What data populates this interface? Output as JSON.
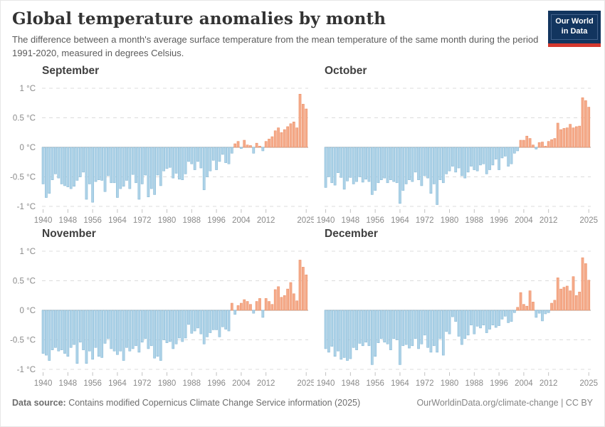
{
  "header": {
    "title": "Global temperature anomalies by month",
    "subtitle": "The difference between a month's average surface temperature from the mean temperature of the same month during the period 1991-2020, measured in degrees Celsius.",
    "logo": {
      "line1": "Our World",
      "line2": "in Data"
    }
  },
  "footer": {
    "source_label": "Data source:",
    "source_text": " Contains modified Copernicus Climate Change Service information (2025)",
    "link_text": "OurWorldinData.org/climate-change | CC BY"
  },
  "colors": {
    "positive_fill": "#f5ab8b",
    "positive_stroke": "#ec9168",
    "negative_fill": "#aed3e8",
    "negative_stroke": "#88b9d6",
    "grid_line": "#dcdcdc",
    "zero_line": "#9a9a9a",
    "tick": "#c2c2c2",
    "logo_navy": "#12355f",
    "logo_red": "#d4382e"
  },
  "axes": {
    "y_ticks": [
      {
        "value": 1,
        "label": "1 °C"
      },
      {
        "value": 0.5,
        "label": "0.5 °C"
      },
      {
        "value": 0,
        "label": "0 °C"
      },
      {
        "value": -0.5,
        "label": "-0.5 °C"
      },
      {
        "value": -1,
        "label": "-1 °C"
      }
    ],
    "x_ticks": [
      {
        "year": 1940,
        "label": "1940"
      },
      {
        "year": 1948,
        "label": "1948"
      },
      {
        "year": 1956,
        "label": "1956"
      },
      {
        "year": 1964,
        "label": "1964"
      },
      {
        "year": 1972,
        "label": "1972"
      },
      {
        "year": 1980,
        "label": "1980"
      },
      {
        "year": 1988,
        "label": "1988"
      },
      {
        "year": 1996,
        "label": "1996"
      },
      {
        "year": 2004,
        "label": "2004"
      },
      {
        "year": 2012,
        "label": "2012"
      },
      {
        "year": 2025,
        "label": "2025"
      }
    ]
  },
  "chart_data": [
    {
      "type": "bar",
      "title": "September",
      "ylabel": "°C",
      "ylim": [
        -1,
        1
      ],
      "start_year": 1940,
      "end_year": 2025,
      "values": [
        -0.62,
        -0.85,
        -0.78,
        -0.55,
        -0.45,
        -0.52,
        -0.62,
        -0.65,
        -0.67,
        -0.7,
        -0.66,
        -0.56,
        -0.5,
        -0.42,
        -0.88,
        -0.62,
        -0.93,
        -0.58,
        -0.55,
        -0.56,
        -0.75,
        -0.48,
        -0.6,
        -0.6,
        -0.85,
        -0.7,
        -0.66,
        -0.56,
        -0.7,
        -0.46,
        -0.6,
        -0.88,
        -0.62,
        -0.47,
        -0.84,
        -0.7,
        -0.8,
        -0.47,
        -0.65,
        -0.4,
        -0.36,
        -0.34,
        -0.52,
        -0.44,
        -0.54,
        -0.55,
        -0.45,
        -0.24,
        -0.28,
        -0.38,
        -0.24,
        -0.35,
        -0.72,
        -0.5,
        -0.4,
        -0.22,
        -0.38,
        -0.24,
        -0.12,
        -0.26,
        -0.28,
        -0.1,
        0.06,
        0.1,
        -0.02,
        0.12,
        0.04,
        0.03,
        -0.1,
        0.07,
        0.02,
        -0.06,
        0.1,
        0.14,
        0.18,
        0.28,
        0.33,
        0.25,
        0.3,
        0.35,
        0.4,
        0.43,
        0.33,
        0.9,
        0.73,
        0.65
      ]
    },
    {
      "type": "bar",
      "title": "October",
      "ylabel": "°C",
      "ylim": [
        -1,
        1
      ],
      "start_year": 1940,
      "end_year": 2025,
      "values": [
        -0.68,
        -0.5,
        -0.6,
        -0.64,
        -0.43,
        -0.51,
        -0.71,
        -0.57,
        -0.51,
        -0.62,
        -0.58,
        -0.5,
        -0.59,
        -0.54,
        -0.58,
        -0.8,
        -0.73,
        -0.6,
        -0.55,
        -0.52,
        -0.6,
        -0.55,
        -0.58,
        -0.6,
        -0.95,
        -0.73,
        -0.62,
        -0.55,
        -0.58,
        -0.42,
        -0.55,
        -0.65,
        -0.48,
        -0.52,
        -0.78,
        -0.62,
        -0.97,
        -0.55,
        -0.6,
        -0.45,
        -0.4,
        -0.32,
        -0.42,
        -0.35,
        -0.48,
        -0.52,
        -0.42,
        -0.32,
        -0.38,
        -0.4,
        -0.3,
        -0.28,
        -0.45,
        -0.38,
        -0.3,
        -0.2,
        -0.38,
        -0.18,
        -0.15,
        -0.32,
        -0.28,
        -0.1,
        -0.06,
        0.12,
        0.12,
        0.19,
        0.15,
        0.04,
        -0.03,
        0.08,
        0.09,
        0.02,
        0.1,
        0.13,
        0.15,
        0.41,
        0.3,
        0.32,
        0.33,
        0.39,
        0.33,
        0.35,
        0.36,
        0.84,
        0.79,
        0.68
      ]
    },
    {
      "type": "bar",
      "title": "November",
      "ylabel": "°C",
      "ylim": [
        -1,
        1
      ],
      "start_year": 1940,
      "end_year": 2025,
      "values": [
        -0.73,
        -0.76,
        -0.85,
        -0.67,
        -0.63,
        -0.69,
        -0.67,
        -0.73,
        -0.78,
        -0.63,
        -0.58,
        -0.9,
        -0.54,
        -0.67,
        -0.9,
        -0.69,
        -0.83,
        -0.63,
        -0.78,
        -0.8,
        -0.56,
        -0.48,
        -0.65,
        -0.69,
        -0.75,
        -0.69,
        -0.85,
        -0.63,
        -0.69,
        -0.65,
        -0.6,
        -0.71,
        -0.54,
        -0.48,
        -0.65,
        -0.6,
        -0.81,
        -0.78,
        -0.85,
        -0.5,
        -0.55,
        -0.53,
        -0.65,
        -0.57,
        -0.47,
        -0.53,
        -0.47,
        -0.24,
        -0.39,
        -0.35,
        -0.3,
        -0.4,
        -0.57,
        -0.45,
        -0.38,
        -0.33,
        -0.33,
        -0.45,
        -0.28,
        -0.32,
        -0.35,
        0.12,
        -0.07,
        0.08,
        0.12,
        0.18,
        0.15,
        0.1,
        -0.05,
        0.15,
        0.2,
        -0.12,
        0.2,
        0.15,
        0.1,
        0.35,
        0.4,
        0.22,
        0.25,
        0.36,
        0.47,
        0.28,
        0.16,
        0.85,
        0.73,
        0.6
      ]
    },
    {
      "type": "bar",
      "title": "December",
      "ylabel": "°C",
      "ylim": [
        -1,
        1
      ],
      "start_year": 1940,
      "end_year": 2025,
      "values": [
        -0.65,
        -0.71,
        -0.61,
        -0.78,
        -0.69,
        -0.83,
        -0.8,
        -0.85,
        -0.82,
        -0.63,
        -0.67,
        -0.56,
        -0.6,
        -0.54,
        -0.6,
        -0.92,
        -0.78,
        -0.55,
        -0.48,
        -0.54,
        -0.57,
        -0.67,
        -0.48,
        -0.5,
        -0.92,
        -0.6,
        -0.58,
        -0.64,
        -0.6,
        -0.48,
        -0.65,
        -0.57,
        -0.42,
        -0.63,
        -0.71,
        -0.6,
        -0.71,
        -0.48,
        -0.76,
        -0.36,
        -0.4,
        -0.11,
        -0.19,
        -0.44,
        -0.58,
        -0.48,
        -0.42,
        -0.25,
        -0.4,
        -0.27,
        -0.3,
        -0.25,
        -0.38,
        -0.32,
        -0.25,
        -0.29,
        -0.26,
        -0.15,
        -0.1,
        -0.21,
        -0.19,
        -0.04,
        0.05,
        0.3,
        0.1,
        0.07,
        0.33,
        0.14,
        -0.12,
        -0.05,
        -0.18,
        -0.06,
        -0.04,
        0.12,
        0.17,
        0.55,
        0.36,
        0.39,
        0.41,
        0.33,
        0.57,
        0.25,
        0.31,
        0.89,
        0.79,
        0.51
      ]
    }
  ]
}
